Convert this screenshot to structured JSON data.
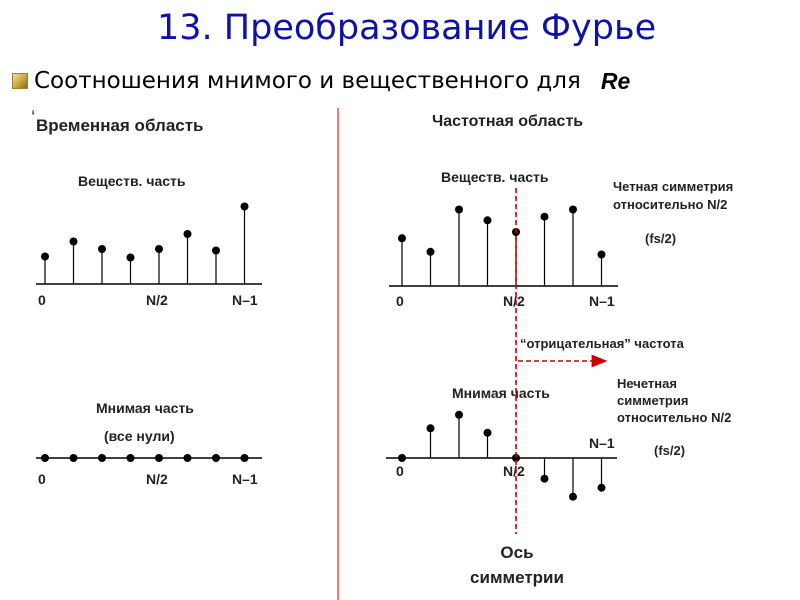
{
  "title": "13. Преобразование Фурье",
  "subtitle": {
    "text": "Соотношения мнимого и вещественного для",
    "emphasis": "Re",
    "bullet_icon": "gold-square-bullet-icon"
  },
  "panels": {
    "time": {
      "heading": "Временная область",
      "real_label": "Веществ. часть",
      "imag_label": "Мнимая часть",
      "imag_note": "(все нули)",
      "ticks": [
        "0",
        "N/2",
        "N–1"
      ],
      "real_values": [
        0.55,
        0.85,
        0.7,
        0.53,
        0.7,
        1.0,
        0.67,
        1.55
      ],
      "imag_values": [
        0,
        0,
        0,
        0,
        0,
        0,
        0,
        0
      ]
    },
    "freq": {
      "heading": "Частотная область",
      "real_label": "Веществ. часть",
      "imag_label": "Мнимая часть",
      "real_sym_line1": "Четная симметрия",
      "real_sym_line2": "относительно N/2",
      "real_fs": "(fs/2)",
      "imag_sym_line1": "Нечетная",
      "imag_sym_line2": "симметрия",
      "imag_sym_line3": "относительно N/2",
      "imag_fs": "(fs/2)",
      "neg_freq_label": "“отрицательная” частота",
      "axis_label_line1": "Ось",
      "axis_label_line2": "симметрии",
      "ticks": [
        "0",
        "N/2",
        "N–1"
      ],
      "real_values": [
        0.53,
        0.38,
        0.85,
        0.73,
        0.6,
        0.77,
        0.85,
        0.35
      ],
      "imag_values": [
        0,
        0.33,
        0.48,
        0.28,
        0,
        -0.23,
        -0.43,
        -0.33
      ]
    }
  },
  "colors": {
    "title": "#0d12a8",
    "divider": "#e05050",
    "symmetry_axis": "#cc0000",
    "ink": "#000000"
  }
}
